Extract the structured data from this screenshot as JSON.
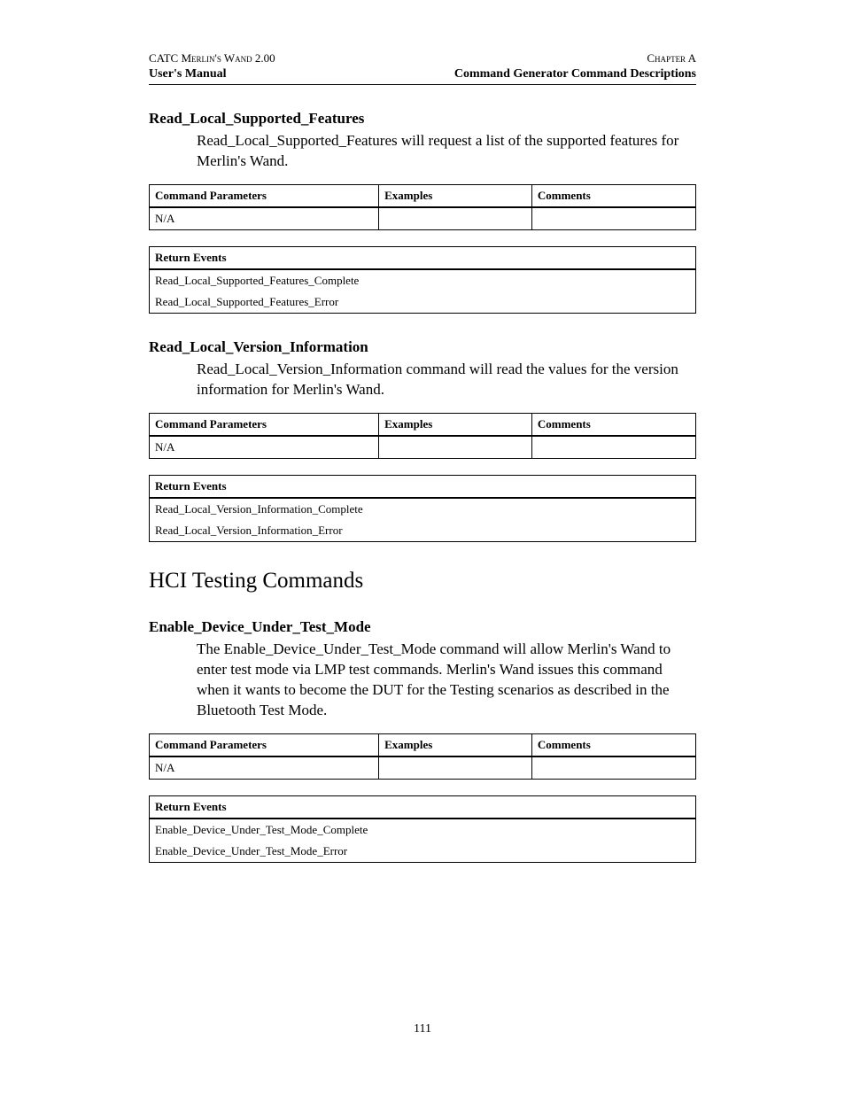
{
  "header": {
    "product_line": "CATC Merlin's Wand 2.00",
    "chapter": "Chapter A",
    "manual_line": "User's Manual",
    "section_line": "Command Generator Command Descriptions"
  },
  "commands": [
    {
      "title": "Read_Local_Supported_Features",
      "description": "Read_Local_Supported_Features will request a list of the supported features for Merlin's Wand.",
      "params_headers": [
        "Command Parameters",
        "Examples",
        "Comments"
      ],
      "params_rows": [
        [
          "N/A",
          "",
          ""
        ]
      ],
      "events_header": "Return Events",
      "events": [
        "Read_Local_Supported_Features_Complete",
        "Read_Local_Supported_Features_Error"
      ]
    },
    {
      "title": "Read_Local_Version_Information",
      "description": "Read_Local_Version_Information command will read the values for the version information for Merlin's Wand.",
      "params_headers": [
        "Command Parameters",
        "Examples",
        "Comments"
      ],
      "params_rows": [
        [
          "N/A",
          "",
          ""
        ]
      ],
      "events_header": "Return Events",
      "events": [
        "Read_Local_Version_Information_Complete",
        "Read_Local_Version_Information_Error"
      ]
    }
  ],
  "section_heading": "HCI Testing Commands",
  "section_commands": [
    {
      "title": "Enable_Device_Under_Test_Mode",
      "description": "The Enable_Device_Under_Test_Mode command will allow Merlin's Wand to enter test mode via LMP test commands. Merlin's Wand issues this command when it wants to become the DUT for the Testing scenarios as described in the Bluetooth Test Mode.",
      "params_headers": [
        "Command Parameters",
        "Examples",
        "Comments"
      ],
      "params_rows": [
        [
          "N/A",
          "",
          ""
        ]
      ],
      "events_header": "Return Events",
      "events": [
        "Enable_Device_Under_Test_Mode_Complete",
        "Enable_Device_Under_Test_Mode_Error"
      ]
    }
  ],
  "page_number": "111"
}
